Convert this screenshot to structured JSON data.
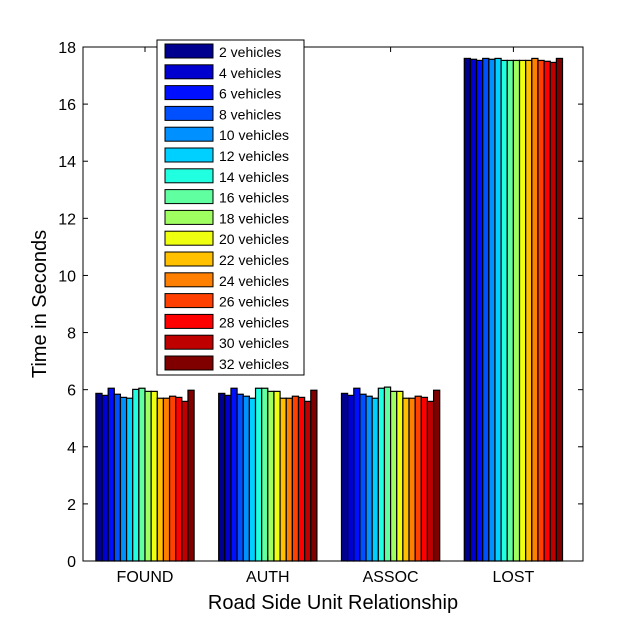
{
  "chart_data": {
    "type": "bar",
    "title": "",
    "xlabel": "Road Side Unit Relationship",
    "ylabel": "Time in Seconds",
    "ylim": [
      0,
      18
    ],
    "yticks": [
      "0",
      "2",
      "4",
      "6",
      "8",
      "10",
      "12",
      "14",
      "16",
      "18"
    ],
    "categories": [
      "FOUND",
      "AUTH",
      "ASSOC",
      "LOST"
    ],
    "legend_position": "top-left",
    "series": [
      {
        "name": "2 vehicles",
        "color": "#00008F",
        "values": [
          5.87,
          5.87,
          5.87,
          17.6
        ]
      },
      {
        "name": "4 vehicles",
        "color": "#0000CF",
        "values": [
          5.8,
          5.8,
          5.8,
          17.57
        ]
      },
      {
        "name": "6 vehicles",
        "color": "#0010FF",
        "values": [
          6.05,
          6.05,
          6.05,
          17.53
        ]
      },
      {
        "name": "8 vehicles",
        "color": "#0050FF",
        "values": [
          5.84,
          5.84,
          5.84,
          17.6
        ]
      },
      {
        "name": "10 vehicles",
        "color": "#0090FF",
        "values": [
          5.73,
          5.77,
          5.77,
          17.57
        ]
      },
      {
        "name": "12 vehicles",
        "color": "#00D0FF",
        "values": [
          5.7,
          5.7,
          5.7,
          17.6
        ]
      },
      {
        "name": "14 vehicles",
        "color": "#20FFDF",
        "values": [
          6.01,
          6.05,
          6.05,
          17.53
        ]
      },
      {
        "name": "16 vehicles",
        "color": "#60FFA0",
        "values": [
          6.05,
          6.05,
          6.09,
          17.53
        ]
      },
      {
        "name": "18 vehicles",
        "color": "#A0FF60",
        "values": [
          5.94,
          5.94,
          5.94,
          17.53
        ]
      },
      {
        "name": "20 vehicles",
        "color": "#EFFF10",
        "values": [
          5.94,
          5.94,
          5.94,
          17.53
        ]
      },
      {
        "name": "22 vehicles",
        "color": "#FFC000",
        "values": [
          5.7,
          5.7,
          5.7,
          17.53
        ]
      },
      {
        "name": "24 vehicles",
        "color": "#FF8000",
        "values": [
          5.7,
          5.7,
          5.7,
          17.6
        ]
      },
      {
        "name": "26 vehicles",
        "color": "#FF4000",
        "values": [
          5.77,
          5.77,
          5.77,
          17.53
        ]
      },
      {
        "name": "28 vehicles",
        "color": "#FF0000",
        "values": [
          5.73,
          5.73,
          5.73,
          17.5
        ]
      },
      {
        "name": "30 vehicles",
        "color": "#BF0000",
        "values": [
          5.59,
          5.59,
          5.59,
          17.46
        ]
      },
      {
        "name": "32 vehicles",
        "color": "#800000",
        "values": [
          5.98,
          5.98,
          5.98,
          17.6
        ]
      }
    ]
  }
}
